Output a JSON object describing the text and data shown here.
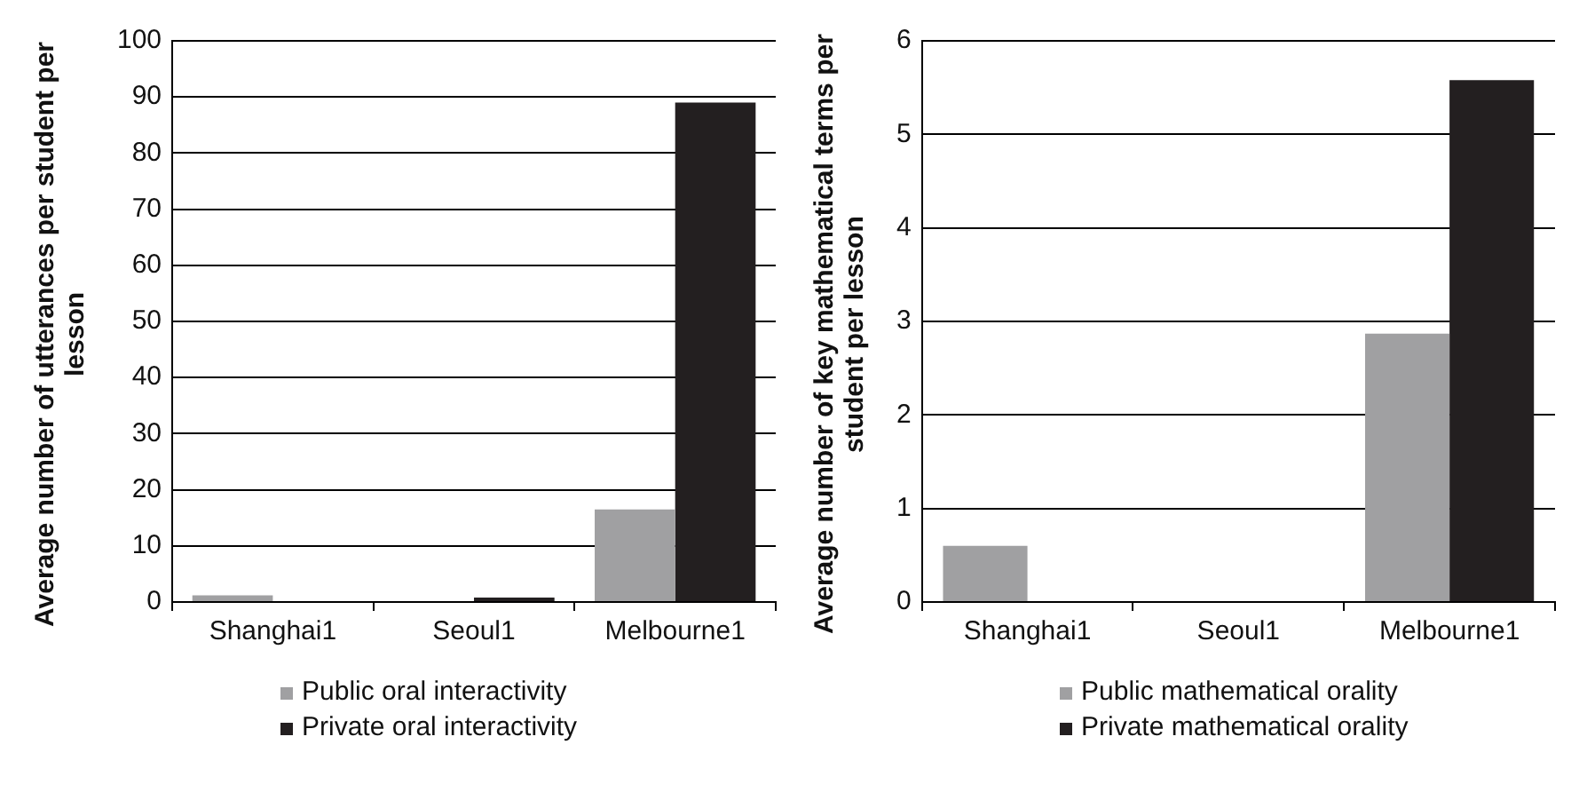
{
  "chart_data": [
    {
      "type": "bar",
      "ylabel": "Average number of utterances per student per lesson",
      "categories": [
        "Shanghai1",
        "Seoul1",
        "Melbourne1"
      ],
      "series": [
        {
          "name": "Public oral interactivity",
          "color": "#a0a0a2",
          "values": [
            1.2,
            0,
            16.5
          ]
        },
        {
          "name": "Private oral interactivity",
          "color": "#231f20",
          "values": [
            0,
            0.8,
            89
          ]
        }
      ],
      "ylim": [
        0,
        100
      ],
      "yticks": [
        0,
        10,
        20,
        30,
        40,
        50,
        60,
        70,
        80,
        90,
        100
      ],
      "grid": "y",
      "legend": "bottom"
    },
    {
      "type": "bar",
      "ylabel": "Average number of key mathematical terms per student per lesson",
      "categories": [
        "Shanghai1",
        "Seoul1",
        "Melbourne1"
      ],
      "series": [
        {
          "name": "Public mathematical orality",
          "color": "#a0a0a2",
          "values": [
            0.6,
            0,
            2.87
          ]
        },
        {
          "name": "Private mathematical orality",
          "color": "#231f20",
          "values": [
            0,
            0,
            5.58
          ]
        }
      ],
      "ylim": [
        0,
        6
      ],
      "yticks": [
        0,
        1,
        2,
        3,
        4,
        5,
        6
      ],
      "grid": "y",
      "legend": "bottom"
    }
  ]
}
